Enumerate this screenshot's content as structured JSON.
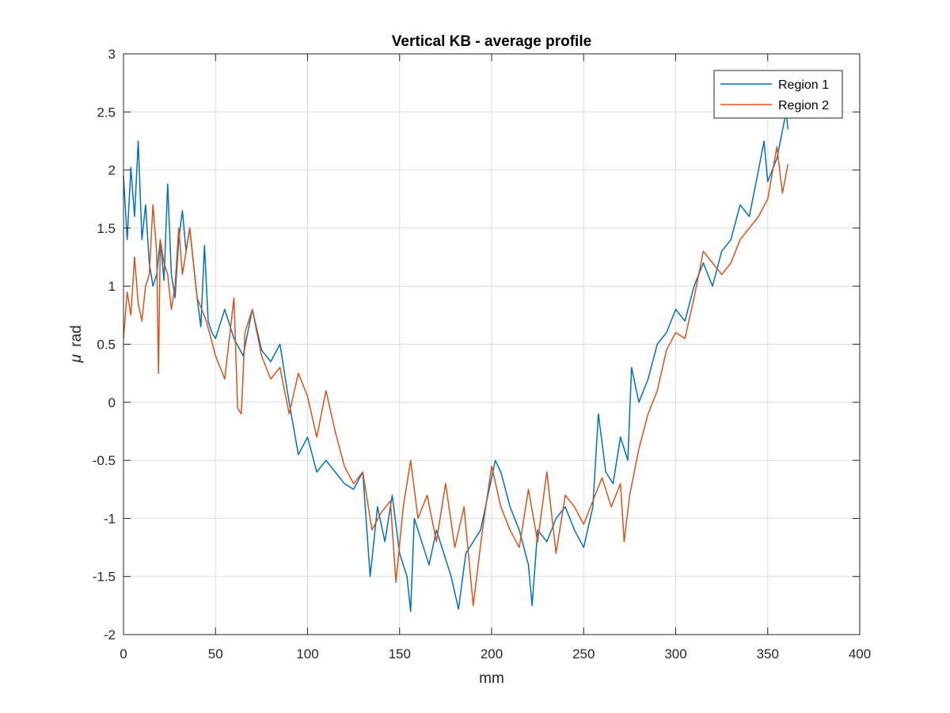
{
  "chart_data": {
    "type": "line",
    "title": "Vertical KB -  average profile",
    "xlabel": "mm",
    "ylabel_symbol": "μ",
    "ylabel_unit": "rad",
    "xlim": [
      0,
      400
    ],
    "ylim": [
      -2,
      3
    ],
    "xticks": [
      0,
      50,
      100,
      150,
      200,
      250,
      300,
      350,
      400
    ],
    "yticks": [
      -2,
      -1.5,
      -1,
      -0.5,
      0,
      0.5,
      1,
      1.5,
      2,
      2.5,
      3
    ],
    "xtick_labels": [
      "0",
      "50",
      "100",
      "150",
      "200",
      "250",
      "300",
      "350",
      "400"
    ],
    "ytick_labels": [
      "-2",
      "-1.5",
      "-1",
      "-0.5",
      "0",
      "0.5",
      "1",
      "1.5",
      "2",
      "2.5",
      "3"
    ],
    "grid": true,
    "legend_position": "top-right",
    "series": [
      {
        "name": "Region 1",
        "color": "#0072BD",
        "x": [
          0,
          2,
          4,
          6,
          8,
          10,
          12,
          14,
          16,
          18,
          20,
          22,
          24,
          26,
          28,
          30,
          32,
          34,
          36,
          38,
          40,
          42,
          44,
          46,
          48,
          50,
          55,
          60,
          65,
          70,
          75,
          80,
          85,
          90,
          95,
          100,
          105,
          110,
          115,
          120,
          125,
          130,
          134,
          138,
          142,
          146,
          150,
          154,
          156,
          158,
          162,
          166,
          170,
          174,
          178,
          182,
          186,
          190,
          194,
          198,
          202,
          205,
          210,
          215,
          220,
          222,
          225,
          230,
          235,
          240,
          245,
          250,
          255,
          258,
          262,
          266,
          270,
          274,
          276,
          280,
          285,
          290,
          295,
          300,
          305,
          310,
          315,
          320,
          325,
          330,
          335,
          340,
          345,
          348,
          350,
          355,
          360,
          361
        ],
        "y": [
          1.95,
          1.4,
          2.02,
          1.6,
          2.25,
          1.4,
          1.7,
          1.2,
          1.0,
          1.1,
          1.4,
          1.05,
          1.88,
          1.1,
          0.9,
          1.4,
          1.65,
          1.3,
          1.5,
          1.2,
          0.9,
          0.65,
          1.35,
          0.7,
          0.6,
          0.55,
          0.8,
          0.55,
          0.4,
          0.8,
          0.45,
          0.35,
          0.5,
          0.0,
          -0.45,
          -0.3,
          -0.6,
          -0.5,
          -0.6,
          -0.7,
          -0.75,
          -0.6,
          -1.5,
          -0.9,
          -1.2,
          -0.8,
          -1.3,
          -1.5,
          -1.8,
          -1.0,
          -1.2,
          -1.4,
          -1.1,
          -1.3,
          -1.5,
          -1.78,
          -1.3,
          -1.2,
          -1.1,
          -0.8,
          -0.5,
          -0.6,
          -0.9,
          -1.1,
          -1.4,
          -1.75,
          -1.1,
          -1.2,
          -1.0,
          -0.9,
          -1.1,
          -1.25,
          -0.9,
          -0.1,
          -0.6,
          -0.7,
          -0.3,
          -0.5,
          0.3,
          0.0,
          0.2,
          0.5,
          0.6,
          0.8,
          0.7,
          1.0,
          1.2,
          1.0,
          1.3,
          1.4,
          1.7,
          1.6,
          2.0,
          2.25,
          1.9,
          2.1,
          2.5,
          2.35
        ]
      },
      {
        "name": "Region 2",
        "color": "#D95319",
        "x": [
          0,
          2,
          4,
          6,
          8,
          10,
          12,
          14,
          16,
          18,
          19,
          20,
          22,
          24,
          26,
          28,
          30,
          32,
          34,
          36,
          40,
          45,
          50,
          55,
          60,
          62,
          64,
          66,
          70,
          75,
          80,
          85,
          90,
          95,
          100,
          105,
          110,
          115,
          120,
          125,
          130,
          135,
          140,
          145,
          148,
          152,
          156,
          160,
          165,
          170,
          175,
          180,
          185,
          190,
          195,
          200,
          205,
          210,
          215,
          220,
          225,
          230,
          235,
          240,
          245,
          250,
          255,
          260,
          265,
          270,
          272,
          275,
          280,
          285,
          290,
          295,
          300,
          305,
          310,
          315,
          320,
          325,
          330,
          335,
          340,
          345,
          350,
          355,
          358,
          361
        ],
        "y": [
          0.55,
          0.95,
          0.75,
          1.25,
          0.85,
          0.7,
          1.0,
          1.1,
          1.7,
          1.3,
          0.25,
          1.4,
          1.2,
          1.1,
          0.8,
          1.0,
          1.5,
          1.1,
          1.3,
          1.5,
          0.9,
          0.7,
          0.4,
          0.2,
          0.9,
          -0.05,
          -0.1,
          0.6,
          0.8,
          0.4,
          0.2,
          0.3,
          -0.1,
          0.25,
          0.05,
          -0.3,
          0.1,
          -0.25,
          -0.55,
          -0.7,
          -0.6,
          -1.1,
          -0.95,
          -0.85,
          -1.55,
          -0.9,
          -0.5,
          -1.0,
          -0.8,
          -1.2,
          -0.7,
          -1.25,
          -0.9,
          -1.75,
          -1.1,
          -0.55,
          -0.9,
          -1.1,
          -1.25,
          -0.75,
          -1.2,
          -0.6,
          -1.3,
          -0.8,
          -0.9,
          -1.05,
          -0.85,
          -0.65,
          -0.9,
          -0.7,
          -1.2,
          -0.8,
          -0.4,
          -0.1,
          0.1,
          0.45,
          0.6,
          0.55,
          0.9,
          1.3,
          1.2,
          1.1,
          1.2,
          1.4,
          1.5,
          1.6,
          1.75,
          2.2,
          1.8,
          2.05
        ]
      }
    ]
  }
}
